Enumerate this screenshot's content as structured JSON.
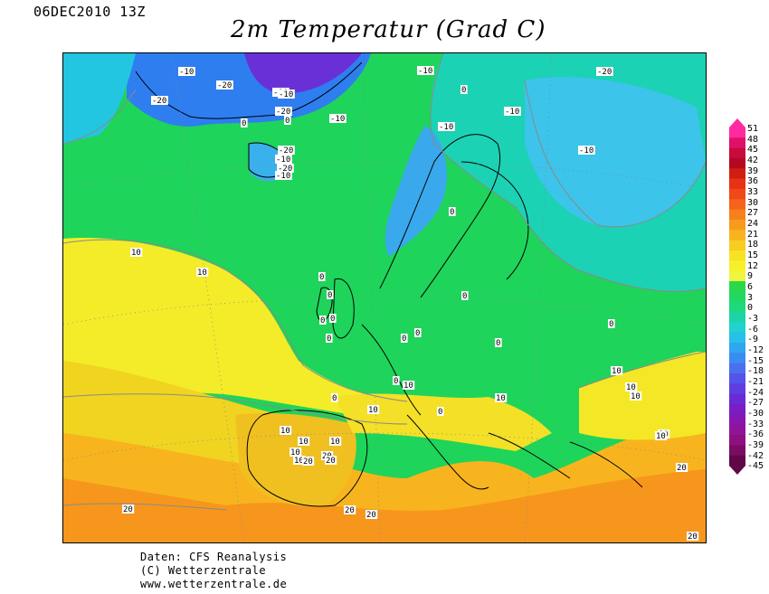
{
  "timestamp": "06DEC2010 13Z",
  "title": "2m Temperatur (Grad C)",
  "credits": {
    "line1": "Daten: CFS Reanalysis",
    "line2": "(C) Wetterzentrale",
    "line3": "www.wetterzentrale.de"
  },
  "colorbar": {
    "levels": [
      "51",
      "48",
      "45",
      "42",
      "39",
      "36",
      "33",
      "30",
      "27",
      "24",
      "21",
      "18",
      "15",
      "12",
      "9",
      "6",
      "3",
      "0",
      "-3",
      "-6",
      "-9",
      "-12",
      "-15",
      "-18",
      "-21",
      "-24",
      "-27",
      "-30",
      "-33",
      "-36",
      "-39",
      "-42",
      "-45"
    ],
    "colors": [
      "#ff2aa0",
      "#e0106a",
      "#c80a3c",
      "#b40820",
      "#d01e14",
      "#e83214",
      "#f04818",
      "#f4641a",
      "#f7801c",
      "#f89a1c",
      "#f8b41e",
      "#f8cc20",
      "#f8e224",
      "#f8f02a",
      "#f0f540",
      "#2ad84a",
      "#22d860",
      "#1ed87a",
      "#1cd4a6",
      "#22d2d0",
      "#28c0e8",
      "#30a6f0",
      "#3a8cf0",
      "#4a70f0",
      "#5454e8",
      "#5e3ee0",
      "#6a2ad4",
      "#7a1ec4",
      "#8618b0",
      "#90149a",
      "#8e1080",
      "#7a0c66",
      "#600848"
    ]
  },
  "contour_labels": [
    "-10",
    "-20",
    "-20",
    "-10",
    "-20",
    "-10",
    "0",
    "-10",
    "0",
    "-20",
    "0",
    "-10",
    "-10",
    "-20",
    "-10",
    "-20",
    "-10",
    "-10",
    "-10",
    "0",
    "10",
    "10",
    "0",
    "0",
    "0",
    "0",
    "0",
    "0",
    "0",
    "0",
    "0",
    "0",
    "0",
    "0",
    "10",
    "10",
    "0",
    "10",
    "10",
    "10",
    "10",
    "10",
    "10",
    "10",
    "10",
    "10",
    "10",
    "20",
    "10",
    "20",
    "20",
    "20",
    "20",
    "20",
    "20",
    "20"
  ]
}
